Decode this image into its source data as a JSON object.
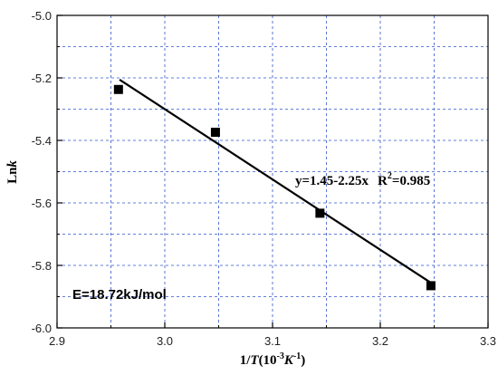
{
  "chart_data": {
    "type": "scatter",
    "xlim": [
      2.9,
      3.3
    ],
    "ylim": [
      -6.0,
      -5.0
    ],
    "xticks": [
      "2.9",
      "3.0",
      "3.1",
      "3.2",
      "3.3"
    ],
    "yticks": [
      "-6.0",
      "-5.8",
      "-5.6",
      "-5.4",
      "-5.2",
      "-5.0"
    ],
    "grid": true,
    "grid_style": "dashed",
    "grid_color": "#3355cc",
    "series": [
      {
        "marker": "square",
        "x": [
          2.957,
          3.047,
          3.144,
          3.247
        ],
        "y": [
          -5.237,
          -5.374,
          -5.633,
          -5.865
        ]
      }
    ],
    "fit_line": {
      "slope": -2.25,
      "intercept": 1.45,
      "x_range": [
        2.958,
        3.246
      ]
    },
    "xlabel": {
      "pre": "1/",
      "italic_T": "T",
      "mid": "(10",
      "exp1": "-3",
      "italic_K": "K",
      "exp2": "-1",
      "post": ")"
    },
    "ylabel": {
      "pre": "Ln",
      "italic": "k"
    },
    "equation": {
      "eq": "y=1.45-2.25x",
      "r_pre": "R",
      "r_sup": "2",
      "r_post": "=0.985"
    },
    "activation_energy": "E=18.72kJ/mol"
  }
}
